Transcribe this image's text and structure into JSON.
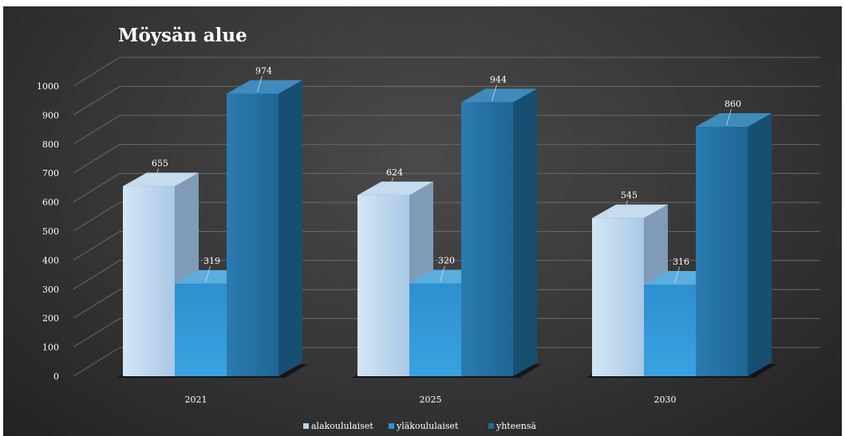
{
  "chart_data": {
    "type": "bar",
    "title": "Möysän alue",
    "categories": [
      "2021",
      "2025",
      "2030"
    ],
    "series": [
      {
        "name": "alakoululaiset",
        "values": [
          655,
          624,
          545
        ],
        "color": "#b9d3ea"
      },
      {
        "name": "yläkoululaiset",
        "values": [
          319,
          320,
          316
        ],
        "color": "#2e95d3"
      },
      {
        "name": "yhteensä",
        "values": [
          974,
          944,
          860
        ],
        "color": "#226c99"
      }
    ],
    "yticks": [
      "0",
      "100",
      "200",
      "300",
      "400",
      "500",
      "600",
      "700",
      "800",
      "900",
      "1000"
    ],
    "ylim": [
      0,
      1000
    ],
    "grid": true,
    "legend_position": "bottom",
    "data_labels": true,
    "style": "3d-clustered-column"
  }
}
